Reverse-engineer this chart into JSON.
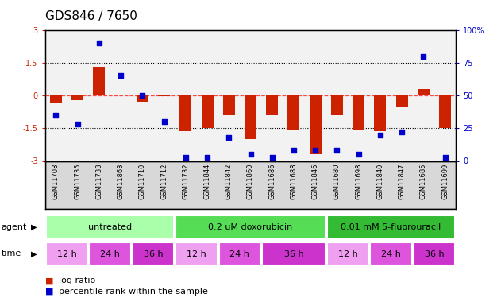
{
  "title": "GDS846 / 7650",
  "samples": [
    "GSM11708",
    "GSM11735",
    "GSM11733",
    "GSM11863",
    "GSM11710",
    "GSM11712",
    "GSM11732",
    "GSM11844",
    "GSM11842",
    "GSM11860",
    "GSM11686",
    "GSM11688",
    "GSM11846",
    "GSM11680",
    "GSM11698",
    "GSM11840",
    "GSM11847",
    "GSM11685",
    "GSM11699"
  ],
  "log_ratio": [
    -0.35,
    -0.2,
    1.3,
    0.05,
    -0.3,
    -0.05,
    -1.65,
    -1.5,
    -0.9,
    -2.0,
    -0.9,
    -1.6,
    -2.7,
    -0.9,
    -1.55,
    -1.65,
    -0.55,
    0.3,
    -1.5
  ],
  "percentile": [
    35,
    28,
    90,
    65,
    50,
    30,
    3,
    3,
    18,
    5,
    3,
    8,
    8,
    8,
    5,
    20,
    22,
    80,
    3
  ],
  "ylim_left": [
    -3,
    3
  ],
  "ylim_right": [
    0,
    100
  ],
  "yticks_left": [
    -3,
    -1.5,
    0,
    1.5,
    3
  ],
  "yticks_right": [
    0,
    25,
    50,
    75,
    100
  ],
  "ytick_labels_left": [
    "-3",
    "-1.5",
    "0",
    "1.5",
    "3"
  ],
  "ytick_labels_right": [
    "0",
    "25",
    "50",
    "75",
    "100%"
  ],
  "agent_groups": [
    {
      "label": "untreated",
      "start": 0,
      "end": 6,
      "color": "#aaffaa"
    },
    {
      "label": "0.2 uM doxorubicin",
      "start": 6,
      "end": 13,
      "color": "#55dd55"
    },
    {
      "label": "0.01 mM 5-fluorouracil",
      "start": 13,
      "end": 19,
      "color": "#33bb33"
    }
  ],
  "time_groups": [
    {
      "label": "12 h",
      "start": 0,
      "end": 2,
      "color": "#f0a0f0"
    },
    {
      "label": "24 h",
      "start": 2,
      "end": 4,
      "color": "#dd55dd"
    },
    {
      "label": "36 h",
      "start": 4,
      "end": 6,
      "color": "#cc33cc"
    },
    {
      "label": "12 h",
      "start": 6,
      "end": 8,
      "color": "#f0a0f0"
    },
    {
      "label": "24 h",
      "start": 8,
      "end": 10,
      "color": "#dd55dd"
    },
    {
      "label": "36 h",
      "start": 10,
      "end": 13,
      "color": "#cc33cc"
    },
    {
      "label": "12 h",
      "start": 13,
      "end": 15,
      "color": "#f0a0f0"
    },
    {
      "label": "24 h",
      "start": 15,
      "end": 17,
      "color": "#dd55dd"
    },
    {
      "label": "36 h",
      "start": 17,
      "end": 19,
      "color": "#cc33cc"
    }
  ],
  "bar_color": "#cc2200",
  "dot_color": "#0000cc",
  "zero_line_color": "#ff4444",
  "bar_width": 0.55,
  "dot_size": 22,
  "agent_label_fontsize": 8,
  "time_label_fontsize": 8,
  "tick_label_fontsize": 7,
  "title_fontsize": 11,
  "legend_fontsize": 8,
  "sample_fontsize": 6
}
